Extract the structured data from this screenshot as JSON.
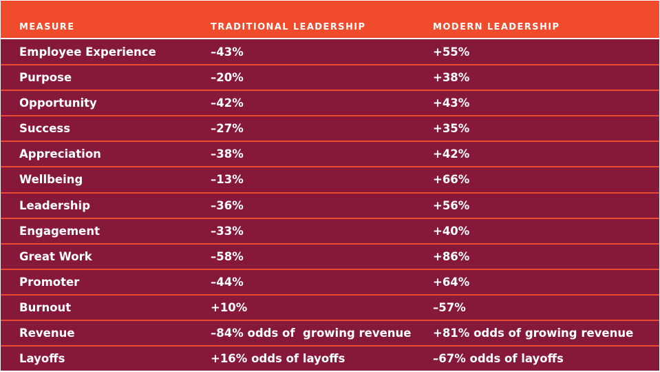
{
  "table": {
    "headers": [
      "MEASURE",
      "TRADITIONAL LEADERSHIP",
      "MODERN LEADERSHIP"
    ],
    "rows": [
      {
        "measure": "Employee Experience",
        "traditional": "–43%",
        "modern": "+55%"
      },
      {
        "measure": "Purpose",
        "traditional": "–20%",
        "modern": "+38%"
      },
      {
        "measure": "Opportunity",
        "traditional": "–42%",
        "modern": "+43%"
      },
      {
        "measure": "Success",
        "traditional": "–27%",
        "modern": "+35%"
      },
      {
        "measure": "Appreciation",
        "traditional": "–38%",
        "modern": "+42%"
      },
      {
        "measure": "Wellbeing",
        "traditional": "–13%",
        "modern": "+66%"
      },
      {
        "measure": "Leadership",
        "traditional": "–36%",
        "modern": "+56%"
      },
      {
        "measure": "Engagement",
        "traditional": "–33%",
        "modern": "+40%"
      },
      {
        "measure": "Great Work",
        "traditional": "–58%",
        "modern": "+86%"
      },
      {
        "measure": "Promoter",
        "traditional": "–44%",
        "modern": "+64%"
      },
      {
        "measure": "Burnout",
        "traditional": "+10%",
        "modern": "–57%"
      },
      {
        "measure": "Revenue",
        "traditional": "–84% odds of  growing revenue",
        "modern": "+81% odds of growing revenue"
      },
      {
        "measure": "Layoffs",
        "traditional": "+16% odds of layoffs",
        "modern": "–67% odds of layoffs"
      }
    ]
  },
  "colors": {
    "header_bg": "#f14b2e",
    "body_bg": "#86183a",
    "row_divider": "#e8492f",
    "text": "#ffffff"
  }
}
